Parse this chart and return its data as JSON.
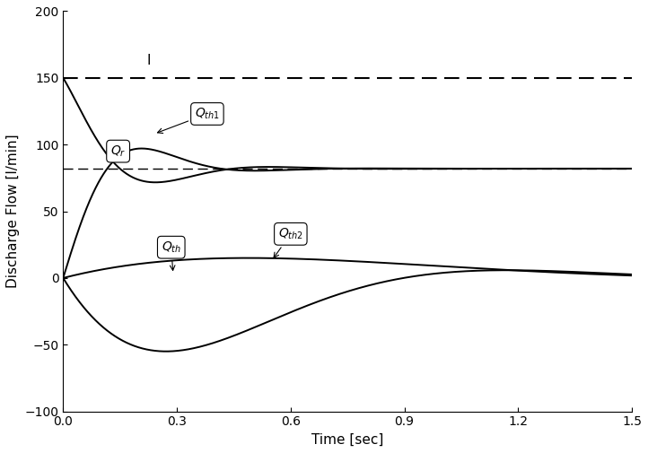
{
  "xlabel": "Time [sec]",
  "ylabel": "Discharge Flow [l/min]",
  "xlim": [
    0,
    1.5
  ],
  "ylim": [
    -100,
    200
  ],
  "yticks": [
    -100,
    -50,
    0,
    50,
    100,
    150,
    200
  ],
  "xticks": [
    0,
    0.3,
    0.6,
    0.9,
    1.2,
    1.5
  ],
  "I_level": 150,
  "Qr_steady": 82,
  "background_color": "#ffffff",
  "line_color": "#000000",
  "figsize": [
    7.22,
    5.05
  ],
  "dpi": 100
}
